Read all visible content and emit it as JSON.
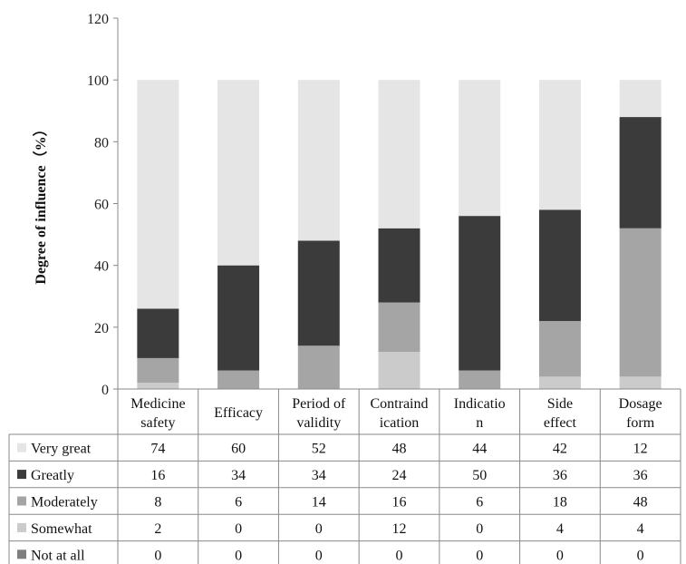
{
  "chart_data": {
    "type": "bar",
    "stacked": true,
    "ylabel": "Degree of influence（%）",
    "ylim": [
      0,
      120
    ],
    "yticks": [
      0,
      20,
      40,
      60,
      80,
      100,
      120
    ],
    "grid": false,
    "categories": [
      [
        "Medicine",
        "safety"
      ],
      [
        "Efficacy"
      ],
      [
        "Period of",
        "validity"
      ],
      [
        "Contraind",
        "ication"
      ],
      [
        "Indicatio",
        "n"
      ],
      [
        "Side",
        "effect"
      ],
      [
        "Dosage",
        "form"
      ]
    ],
    "series": [
      {
        "name": "Very great",
        "color": "#e5e5e5",
        "values": [
          74,
          60,
          52,
          48,
          44,
          42,
          12
        ]
      },
      {
        "name": "Greatly",
        "color": "#3b3b3b",
        "values": [
          16,
          34,
          34,
          24,
          50,
          36,
          36
        ]
      },
      {
        "name": "Moderately",
        "color": "#a5a5a5",
        "values": [
          8,
          6,
          14,
          16,
          6,
          18,
          48
        ]
      },
      {
        "name": "Somewhat",
        "color": "#cbcbcb",
        "values": [
          2,
          0,
          0,
          12,
          0,
          4,
          4
        ]
      },
      {
        "name": "Not at all",
        "color": "#7f7f7f",
        "values": [
          0,
          0,
          0,
          0,
          0,
          0,
          0
        ]
      }
    ],
    "legend": "data-table-left"
  }
}
